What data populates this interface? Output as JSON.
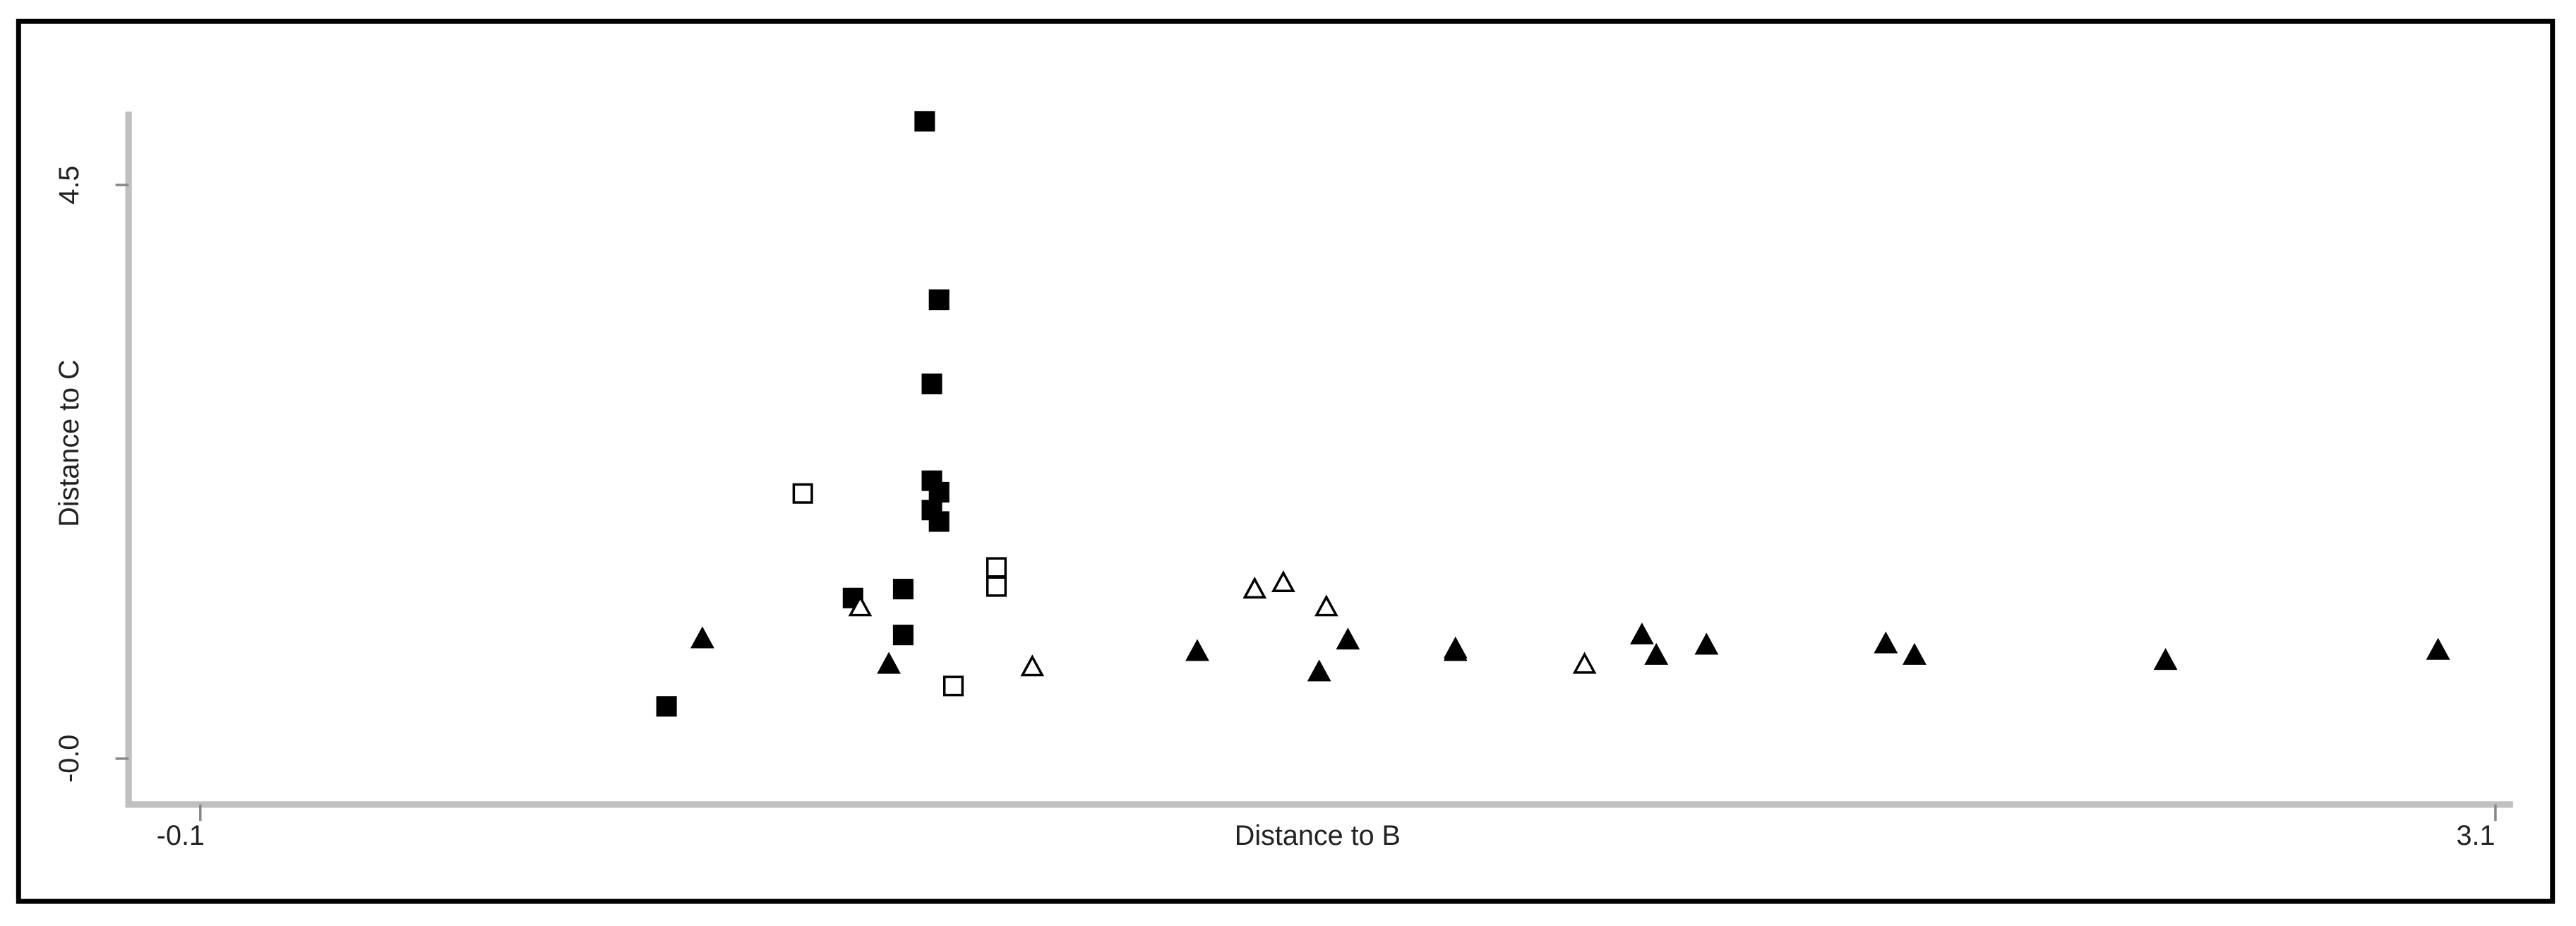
{
  "chart_data": {
    "type": "scatter",
    "x_label": "Distance to B",
    "y_label": "Distance to C",
    "xlim": [
      -0.2,
      3.12
    ],
    "ylim": [
      -0.36,
      5.05
    ],
    "xticks": [
      -0.1,
      3.1
    ],
    "yticks": [
      {
        "value": 0,
        "label": "-0.0"
      },
      4.5
    ],
    "series": [
      {
        "marker": "square",
        "filled": true,
        "color": "#000000",
        "x": [
          0.91,
          0.93,
          0.92,
          0.92,
          0.93,
          0.92,
          0.93,
          0.88,
          0.81,
          0.88,
          0.55
        ],
        "values": [
          5.0,
          3.6,
          2.94,
          2.18,
          2.09,
          1.95,
          1.86,
          1.33,
          1.26,
          0.97,
          0.41
        ]
      },
      {
        "marker": "square",
        "filled": false,
        "color": "#000000",
        "x": [
          0.74,
          1.01,
          1.01,
          0.95
        ],
        "values": [
          2.08,
          1.5,
          1.35,
          0.57
        ]
      },
      {
        "marker": "triangle",
        "filled": true,
        "color": "#000000",
        "x": [
          0.6,
          0.86,
          1.29,
          1.46,
          1.5,
          1.65,
          1.65,
          1.91,
          1.93,
          2.0,
          2.25,
          2.29,
          2.64,
          3.02
        ],
        "values": [
          0.94,
          0.74,
          0.84,
          0.68,
          0.93,
          0.86,
          0.84,
          0.97,
          0.81,
          0.89,
          0.9,
          0.81,
          0.77,
          0.85
        ]
      },
      {
        "marker": "triangle",
        "filled": false,
        "color": "#000000",
        "x": [
          0.82,
          1.06,
          1.37,
          1.41,
          1.47,
          1.83
        ],
        "values": [
          1.19,
          0.72,
          1.33,
          1.38,
          1.19,
          0.74
        ]
      }
    ]
  }
}
